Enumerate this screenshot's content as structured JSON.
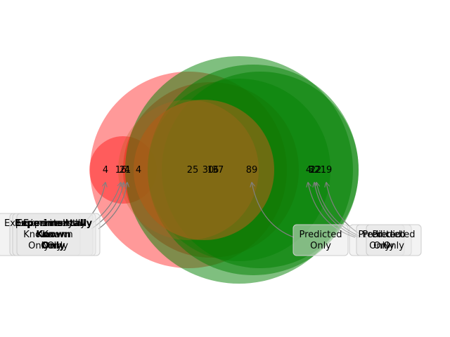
{
  "colors": {
    "set_a": "#ff0000",
    "set_b": "#008000",
    "overlap": "#b5651d",
    "arrow": "#808080",
    "box_fill": "#e8e8e8"
  },
  "venns": [
    {
      "a_only": "4",
      "overlap": "25",
      "b_only": "4"
    },
    {
      "a_only": "16",
      "overlap": "30",
      "b_only": "32"
    },
    {
      "a_only": "21",
      "overlap": "16",
      "b_only": "22"
    },
    {
      "a_only": "4",
      "overlap": "37",
      "b_only": "19"
    },
    {
      "a_only": "4",
      "overlap": "89",
      "b_only": "89"
    }
  ],
  "annotations": {
    "left": [
      {
        "line1": "Experimentally",
        "line2": "Known",
        "line3": "Only",
        "bold": false
      },
      {
        "line1": "Experimentally",
        "line2": "Known",
        "line3": "Only",
        "bold": false
      },
      {
        "line1": "Experimentally",
        "line2": "Known",
        "line3": "Only",
        "bold": true
      },
      {
        "line1": "Experimentally",
        "line2": "Known",
        "line3": "Only",
        "bold": false
      }
    ],
    "right": [
      {
        "line1": "Predicted",
        "line2": "Only"
      },
      {
        "line1": "Predicted",
        "line2": "Only"
      },
      {
        "line1": "Predicted",
        "line2": "Only"
      },
      {
        "line1": "Predicted",
        "line2": "Only"
      }
    ]
  }
}
